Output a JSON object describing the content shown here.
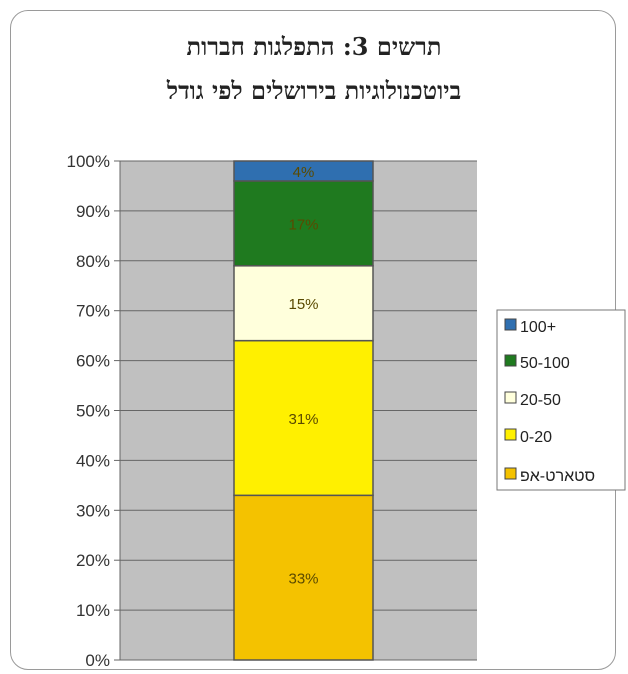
{
  "chart_data": {
    "type": "bar",
    "stacked": true,
    "title_line1": "תרשים 3: התפלגות חברות",
    "title_line2": "ביוטכנולוגיות בירושלים לפי גודל",
    "ylim": [
      0,
      100
    ],
    "y_ticks": [
      "0%",
      "10%",
      "20%",
      "30%",
      "40%",
      "50%",
      "60%",
      "70%",
      "80%",
      "90%",
      "100%"
    ],
    "grid": true,
    "legend_position": "right",
    "series": [
      {
        "name": "סטארט-אפ",
        "value": 33,
        "label": "33%",
        "color": "#f4c200"
      },
      {
        "name": "0-20",
        "value": 31,
        "label": "31%",
        "color": "#fff000"
      },
      {
        "name": "20-50",
        "value": 15,
        "label": "15%",
        "color": "#ffffdc"
      },
      {
        "name": "50-100",
        "value": 17,
        "label": "17%",
        "color": "#1f7a1f"
      },
      {
        "name": "100+",
        "value": 4,
        "label": "4%",
        "color": "#2f6fb0"
      }
    ],
    "legend_order": [
      "100+",
      "50-100",
      "20-50",
      "0-20",
      "סטארט-אפ"
    ]
  }
}
